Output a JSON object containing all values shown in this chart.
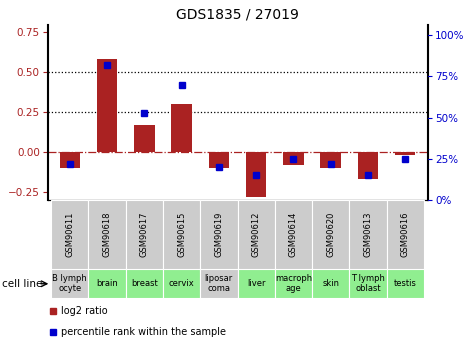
{
  "title": "GDS1835 / 27019",
  "samples": [
    "GSM90611",
    "GSM90618",
    "GSM90617",
    "GSM90615",
    "GSM90619",
    "GSM90612",
    "GSM90614",
    "GSM90620",
    "GSM90613",
    "GSM90616"
  ],
  "cell_lines": [
    "B lymph\nocyte",
    "brain",
    "breast",
    "cervix",
    "liposar\ncoma",
    "liver",
    "macroph\nage",
    "skin",
    "T lymph\noblast",
    "testis"
  ],
  "cell_line_colors": [
    "#cccccc",
    "#90ee90",
    "#90ee90",
    "#90ee90",
    "#cccccc",
    "#90ee90",
    "#90ee90",
    "#90ee90",
    "#90ee90",
    "#90ee90"
  ],
  "gsm_box_color": "#cccccc",
  "log2_ratio": [
    -0.1,
    0.58,
    0.17,
    0.3,
    -0.1,
    -0.28,
    -0.08,
    -0.1,
    -0.17,
    -0.02
  ],
  "percentile_rank": [
    0.22,
    0.82,
    0.53,
    0.7,
    0.2,
    0.15,
    0.25,
    0.22,
    0.15,
    0.25
  ],
  "bar_color": "#aa2222",
  "dot_color": "#0000cc",
  "ylim_left": [
    -0.3,
    0.8
  ],
  "ylim_right": [
    0.0,
    1.067
  ],
  "yticks_left": [
    -0.25,
    0.0,
    0.25,
    0.5,
    0.75
  ],
  "yticks_right_vals": [
    0.0,
    0.25,
    0.5,
    0.75,
    1.0
  ],
  "yticks_right_labels": [
    "0%",
    "25%",
    "50%",
    "75%",
    "100%"
  ],
  "hline_dotted": [
    0.25,
    0.5
  ],
  "hline_dash": 0.0,
  "bg_color": "#ffffff"
}
